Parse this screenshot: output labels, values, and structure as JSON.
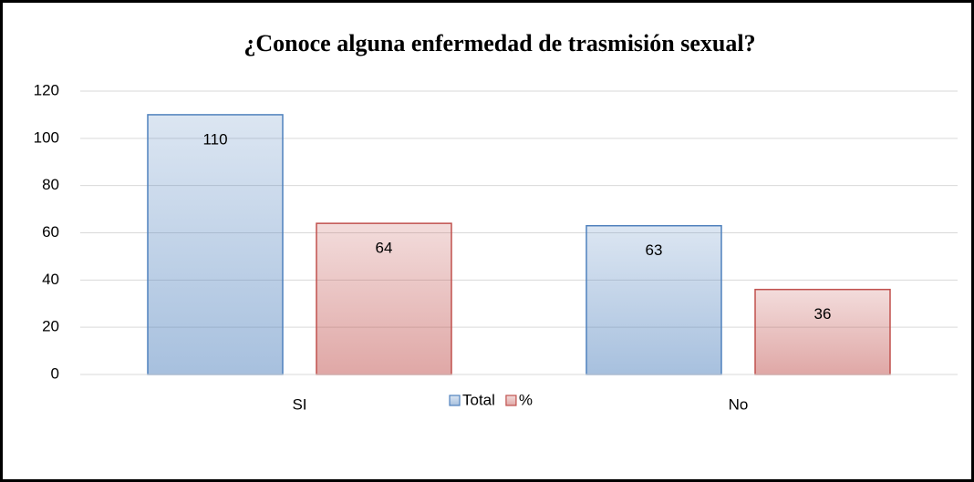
{
  "chart_data": {
    "type": "bar",
    "title": "¿Conoce alguna enfermedad de trasmisión sexual?",
    "categories": [
      "SI",
      "No"
    ],
    "series": [
      {
        "name": "Total",
        "color": "#4f81bd",
        "values": [
          110,
          63
        ]
      },
      {
        "name": "%",
        "color": "#c0504d",
        "values": [
          64,
          36
        ]
      }
    ],
    "ylim": [
      0,
      120
    ],
    "yticks": [
      0,
      20,
      40,
      60,
      80,
      100,
      120
    ],
    "grid": true,
    "legend": "bottom"
  }
}
